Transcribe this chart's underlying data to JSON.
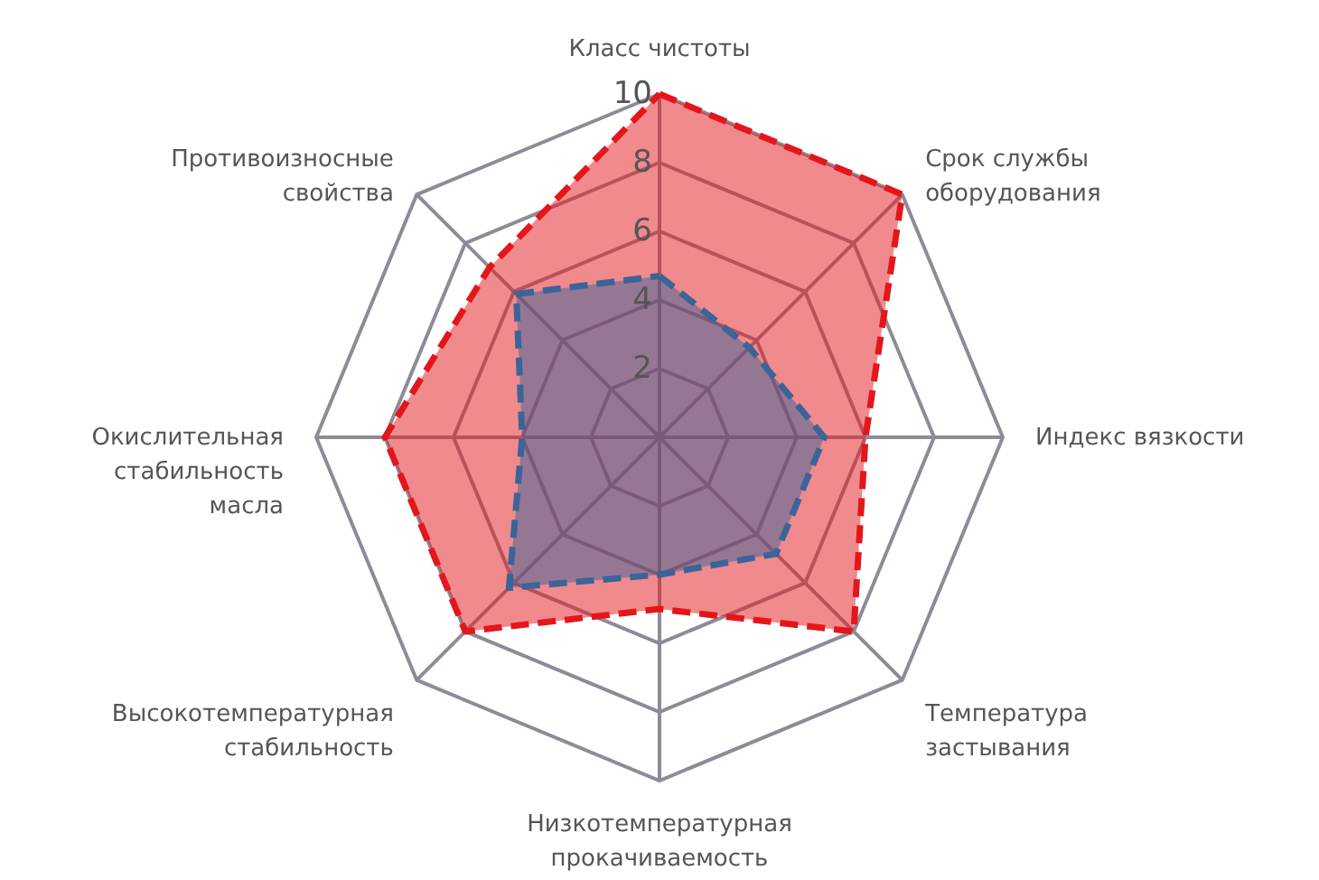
{
  "chart_data": {
    "type": "radar",
    "categories": [
      "Класс чистоты",
      "Срок службы\nоборудования",
      "Индекс вязкости",
      "Температура\nзастывания",
      "Низкотемпературная\nпрокачиваемость",
      "Высокотемпературная\nстабильность",
      "Окислительная\nстабильность\nмасла",
      "Противоизносные\nсвойства"
    ],
    "series": [
      {
        "color": "#e3161b",
        "values": [
          10,
          10,
          6,
          8,
          5,
          8,
          8,
          7
        ]
      },
      {
        "color": "#3b6499",
        "values": [
          4.7,
          3.7,
          4.8,
          4.8,
          4,
          6.2,
          4,
          5.9
        ]
      }
    ],
    "ylim": [
      0,
      10
    ],
    "yticks": [
      2,
      4,
      6,
      8,
      10
    ],
    "grid": true,
    "line_style": "dashed",
    "marker": "none"
  }
}
